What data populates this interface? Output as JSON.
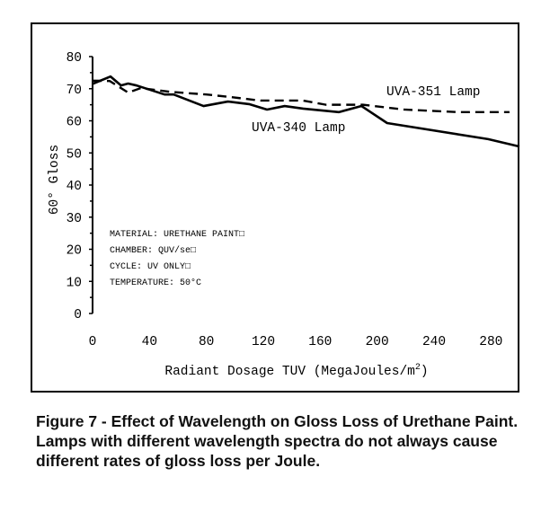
{
  "chart_data": {
    "type": "line",
    "title": "",
    "xlabel": "Radiant Dosage TUV (MegaJoules/m",
    "xlabel_sup": "2",
    "xlabel_end": ")",
    "ylabel": "60° Gloss",
    "xlim": [
      0,
      300
    ],
    "ylim": [
      0,
      80
    ],
    "xticks": [
      0,
      40,
      80,
      120,
      160,
      200,
      240,
      280
    ],
    "yticks": [
      0,
      10,
      20,
      30,
      40,
      50,
      60,
      70,
      80
    ],
    "grid": false,
    "series": [
      {
        "name": "UVA-340 Lamp",
        "style": "solid",
        "x": [
          0,
          12.6,
          20,
          25,
          31,
          50.6,
          57,
          78,
          95,
          110,
          122.6,
          135,
          148,
          173,
          189,
          207,
          278,
          300
        ],
        "y": [
          71.5,
          73.8,
          71,
          71.6,
          71,
          68.2,
          68.2,
          64.6,
          66,
          65.2,
          63.5,
          64.6,
          63.8,
          62.7,
          64.6,
          59.3,
          54.3,
          52
        ]
      },
      {
        "name": "UVA-351 Lamp",
        "style": "dashed",
        "x": [
          0,
          12,
          25,
          34,
          55,
          80,
          97,
          118,
          148,
          164,
          190,
          219,
          257,
          293
        ],
        "y": [
          72.5,
          72.4,
          68.8,
          70.2,
          69,
          68.2,
          67.4,
          66.3,
          66.3,
          65,
          65,
          63.5,
          62.7,
          62.7
        ]
      }
    ],
    "annotations": [
      "MATERIAL:  URETHANE PAINT□",
      "CHAMBER:  QUV/se□",
      "CYCLE:  UV ONLY□",
      "TEMPERATURE: 50°C"
    ]
  },
  "caption": "Figure 7 - Effect of Wavelength on Gloss Loss of Urethane Paint. Lamps with different wavelength spectra do not always cause different rates of gloss loss per Joule."
}
